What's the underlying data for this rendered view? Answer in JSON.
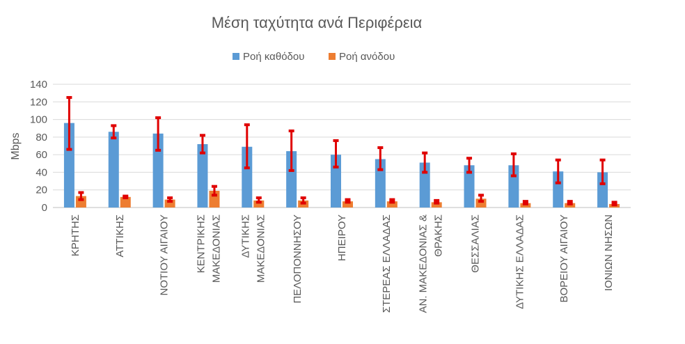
{
  "chart_data": {
    "type": "bar",
    "title": "Μέση ταχύτητα ανά Περιφέρεια",
    "xlabel": "",
    "ylabel": "Mbps",
    "ylim": [
      0,
      140
    ],
    "yticks": [
      0,
      20,
      40,
      60,
      80,
      100,
      120,
      140
    ],
    "grid": true,
    "legend_position": "top",
    "categories": [
      "ΚΡΗΤΗΣ",
      "ΑΤΤΙΚΗΣ",
      "ΝΟΤΙΟΥ ΑΙΓΑΙΟΥ",
      "ΚΕΝΤΡΙΚΗΣ ΜΑΚΕΔΟΝΙΑΣ",
      "ΔΥΤΙΚΗΣ ΜΑΚΕΔΟΝΙΑΣ",
      "ΠΕΛΟΠΟΝΝΗΣΟΥ",
      "ΗΠΕΙΡΟΥ",
      "ΣΤΕΡΕΑΣ ΕΛΛΑΔΑΣ",
      "ΑΝ. ΜΑΚΕΔΟΝΙΑΣ & ΘΡΑΚΗΣ",
      "ΘΕΣΣΑΛΙΑΣ",
      "ΔΥΤΙΚΗΣ ΕΛΛΑΔΑΣ",
      "ΒΟΡΕΙΟΥ ΑΙΓΑΙΟΥ",
      "ΙΟΝΙΩΝ ΝΗΣΩΝ"
    ],
    "category_label_lines": [
      [
        "ΚΡΗΤΗΣ"
      ],
      [
        "ΑΤΤΙΚΗΣ"
      ],
      [
        "ΝΟΤΙΟΥ ΑΙΓΑΙΟΥ"
      ],
      [
        "ΚΕΝΤΡΙΚΗΣ",
        "ΜΑΚΕΔΟΝΙΑΣ"
      ],
      [
        "ΔΥΤΙΚΗΣ",
        "ΜΑΚΕΔΟΝΙΑΣ"
      ],
      [
        "ΠΕΛΟΠΟΝΝΗΣΟΥ"
      ],
      [
        "ΗΠΕΙΡΟΥ"
      ],
      [
        "ΣΤΕΡΕΑΣ ΕΛΛΑΔΑΣ"
      ],
      [
        "ΑΝ. ΜΑΚΕΔΟΝΙΑΣ &",
        "ΘΡΑΚΗΣ"
      ],
      [
        "ΘΕΣΣΑΛΙΑΣ"
      ],
      [
        "ΔΥΤΙΚΗΣ ΕΛΛΑΔΑΣ"
      ],
      [
        "ΒΟΡΕΙΟΥ ΑΙΓΑΙΟΥ"
      ],
      [
        "ΙΟΝΙΩΝ ΝΗΣΩΝ"
      ]
    ],
    "series": [
      {
        "name": "Ροή καθόδου",
        "color": "#5B9BD5",
        "values": [
          96,
          86,
          84,
          72,
          69,
          64,
          60,
          55,
          51,
          48,
          48,
          41,
          40
        ],
        "error_low": [
          66,
          79,
          65,
          62,
          45,
          42,
          46,
          43,
          40,
          40,
          36,
          28,
          27
        ],
        "error_high": [
          125,
          93,
          102,
          82,
          94,
          87,
          76,
          68,
          62,
          56,
          61,
          54,
          54
        ]
      },
      {
        "name": "Ροή ανόδου",
        "color": "#ED7D31",
        "values": [
          13,
          12,
          9,
          19,
          8,
          8,
          7,
          7,
          6,
          10,
          5,
          5,
          4
        ],
        "error_low": [
          9,
          11,
          7,
          14,
          6,
          5,
          6,
          6,
          5,
          7,
          4,
          4,
          3
        ],
        "error_high": [
          17,
          13,
          11,
          24,
          11,
          11,
          9,
          9,
          8,
          14,
          7,
          7,
          6
        ]
      }
    ],
    "error_bar_color": "#E00000"
  }
}
